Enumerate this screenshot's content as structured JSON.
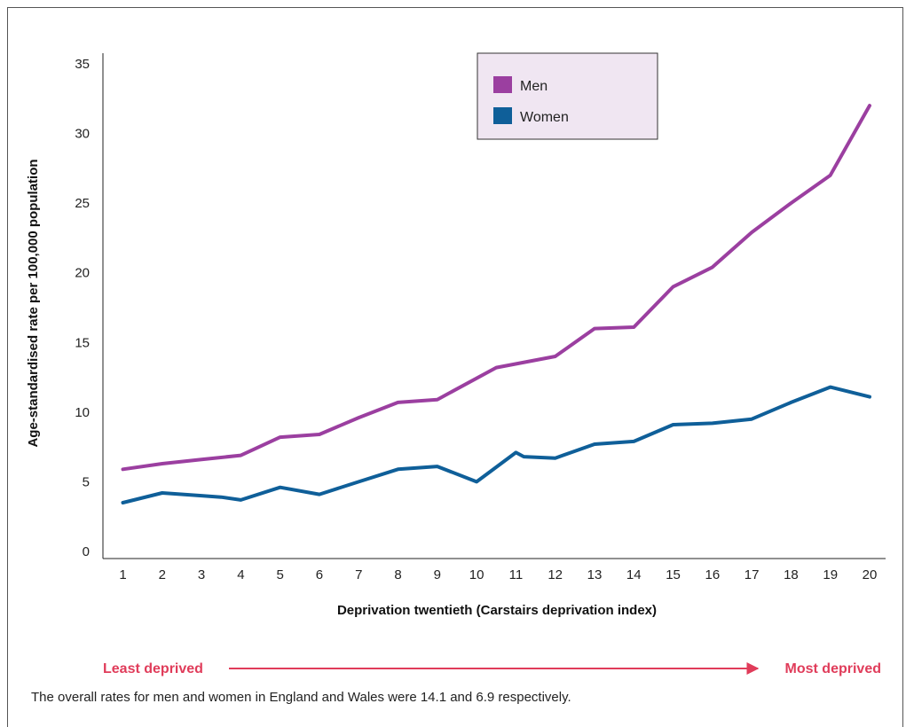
{
  "chart_data": {
    "type": "line",
    "ylabel": "Age-standardised rate per 100,000 population",
    "xlabel": "Deprivation twentieth (Carstairs deprivation index)",
    "x": [
      1,
      2,
      3,
      4,
      5,
      6,
      7,
      8,
      9,
      10,
      11,
      12,
      13,
      14,
      15,
      16,
      17,
      18,
      19,
      20
    ],
    "xlim": [
      1,
      20
    ],
    "ylim": [
      0,
      35
    ],
    "yticks": [
      0,
      5,
      10,
      15,
      20,
      25,
      30,
      35
    ],
    "grid": false,
    "legend_position": "top-center",
    "series": [
      {
        "name": "Men",
        "color": "#9b3fa0",
        "points": [
          [
            1,
            5.9
          ],
          [
            2,
            6.3
          ],
          [
            3,
            6.6
          ],
          [
            4,
            6.9
          ],
          [
            5,
            8.2
          ],
          [
            6,
            8.4
          ],
          [
            7,
            9.6
          ],
          [
            8,
            10.7
          ],
          [
            9,
            10.9
          ],
          [
            10.5,
            13.2
          ],
          [
            12,
            14.0
          ],
          [
            13,
            16.0
          ],
          [
            14,
            16.1
          ],
          [
            15,
            19.0
          ],
          [
            16,
            20.4
          ],
          [
            17,
            22.9
          ],
          [
            18,
            25.0
          ],
          [
            19,
            27.0
          ],
          [
            20,
            32.0
          ]
        ]
      },
      {
        "name": "Women",
        "color": "#0f5f99",
        "points": [
          [
            1,
            3.5
          ],
          [
            2,
            4.2
          ],
          [
            3,
            4.0
          ],
          [
            3.5,
            3.9
          ],
          [
            4,
            3.7
          ],
          [
            5,
            4.6
          ],
          [
            6,
            4.1
          ],
          [
            7,
            5.0
          ],
          [
            8,
            5.9
          ],
          [
            9,
            6.1
          ],
          [
            10,
            5.0
          ],
          [
            11,
            7.1
          ],
          [
            11.2,
            6.8
          ],
          [
            12,
            6.7
          ],
          [
            13,
            7.7
          ],
          [
            14,
            7.9
          ],
          [
            15,
            9.1
          ],
          [
            16,
            9.2
          ],
          [
            17,
            9.5
          ],
          [
            18,
            10.7
          ],
          [
            19,
            11.8
          ],
          [
            20,
            11.1
          ]
        ]
      }
    ],
    "scale_left_label": "Least deprived",
    "scale_right_label": "Most deprived",
    "scale_color": "#e03c5a",
    "legend_background": "#f0e6f2"
  },
  "footnote": "The overall rates for men and women in England and Wales were 14.1 and 6.9 respectively."
}
